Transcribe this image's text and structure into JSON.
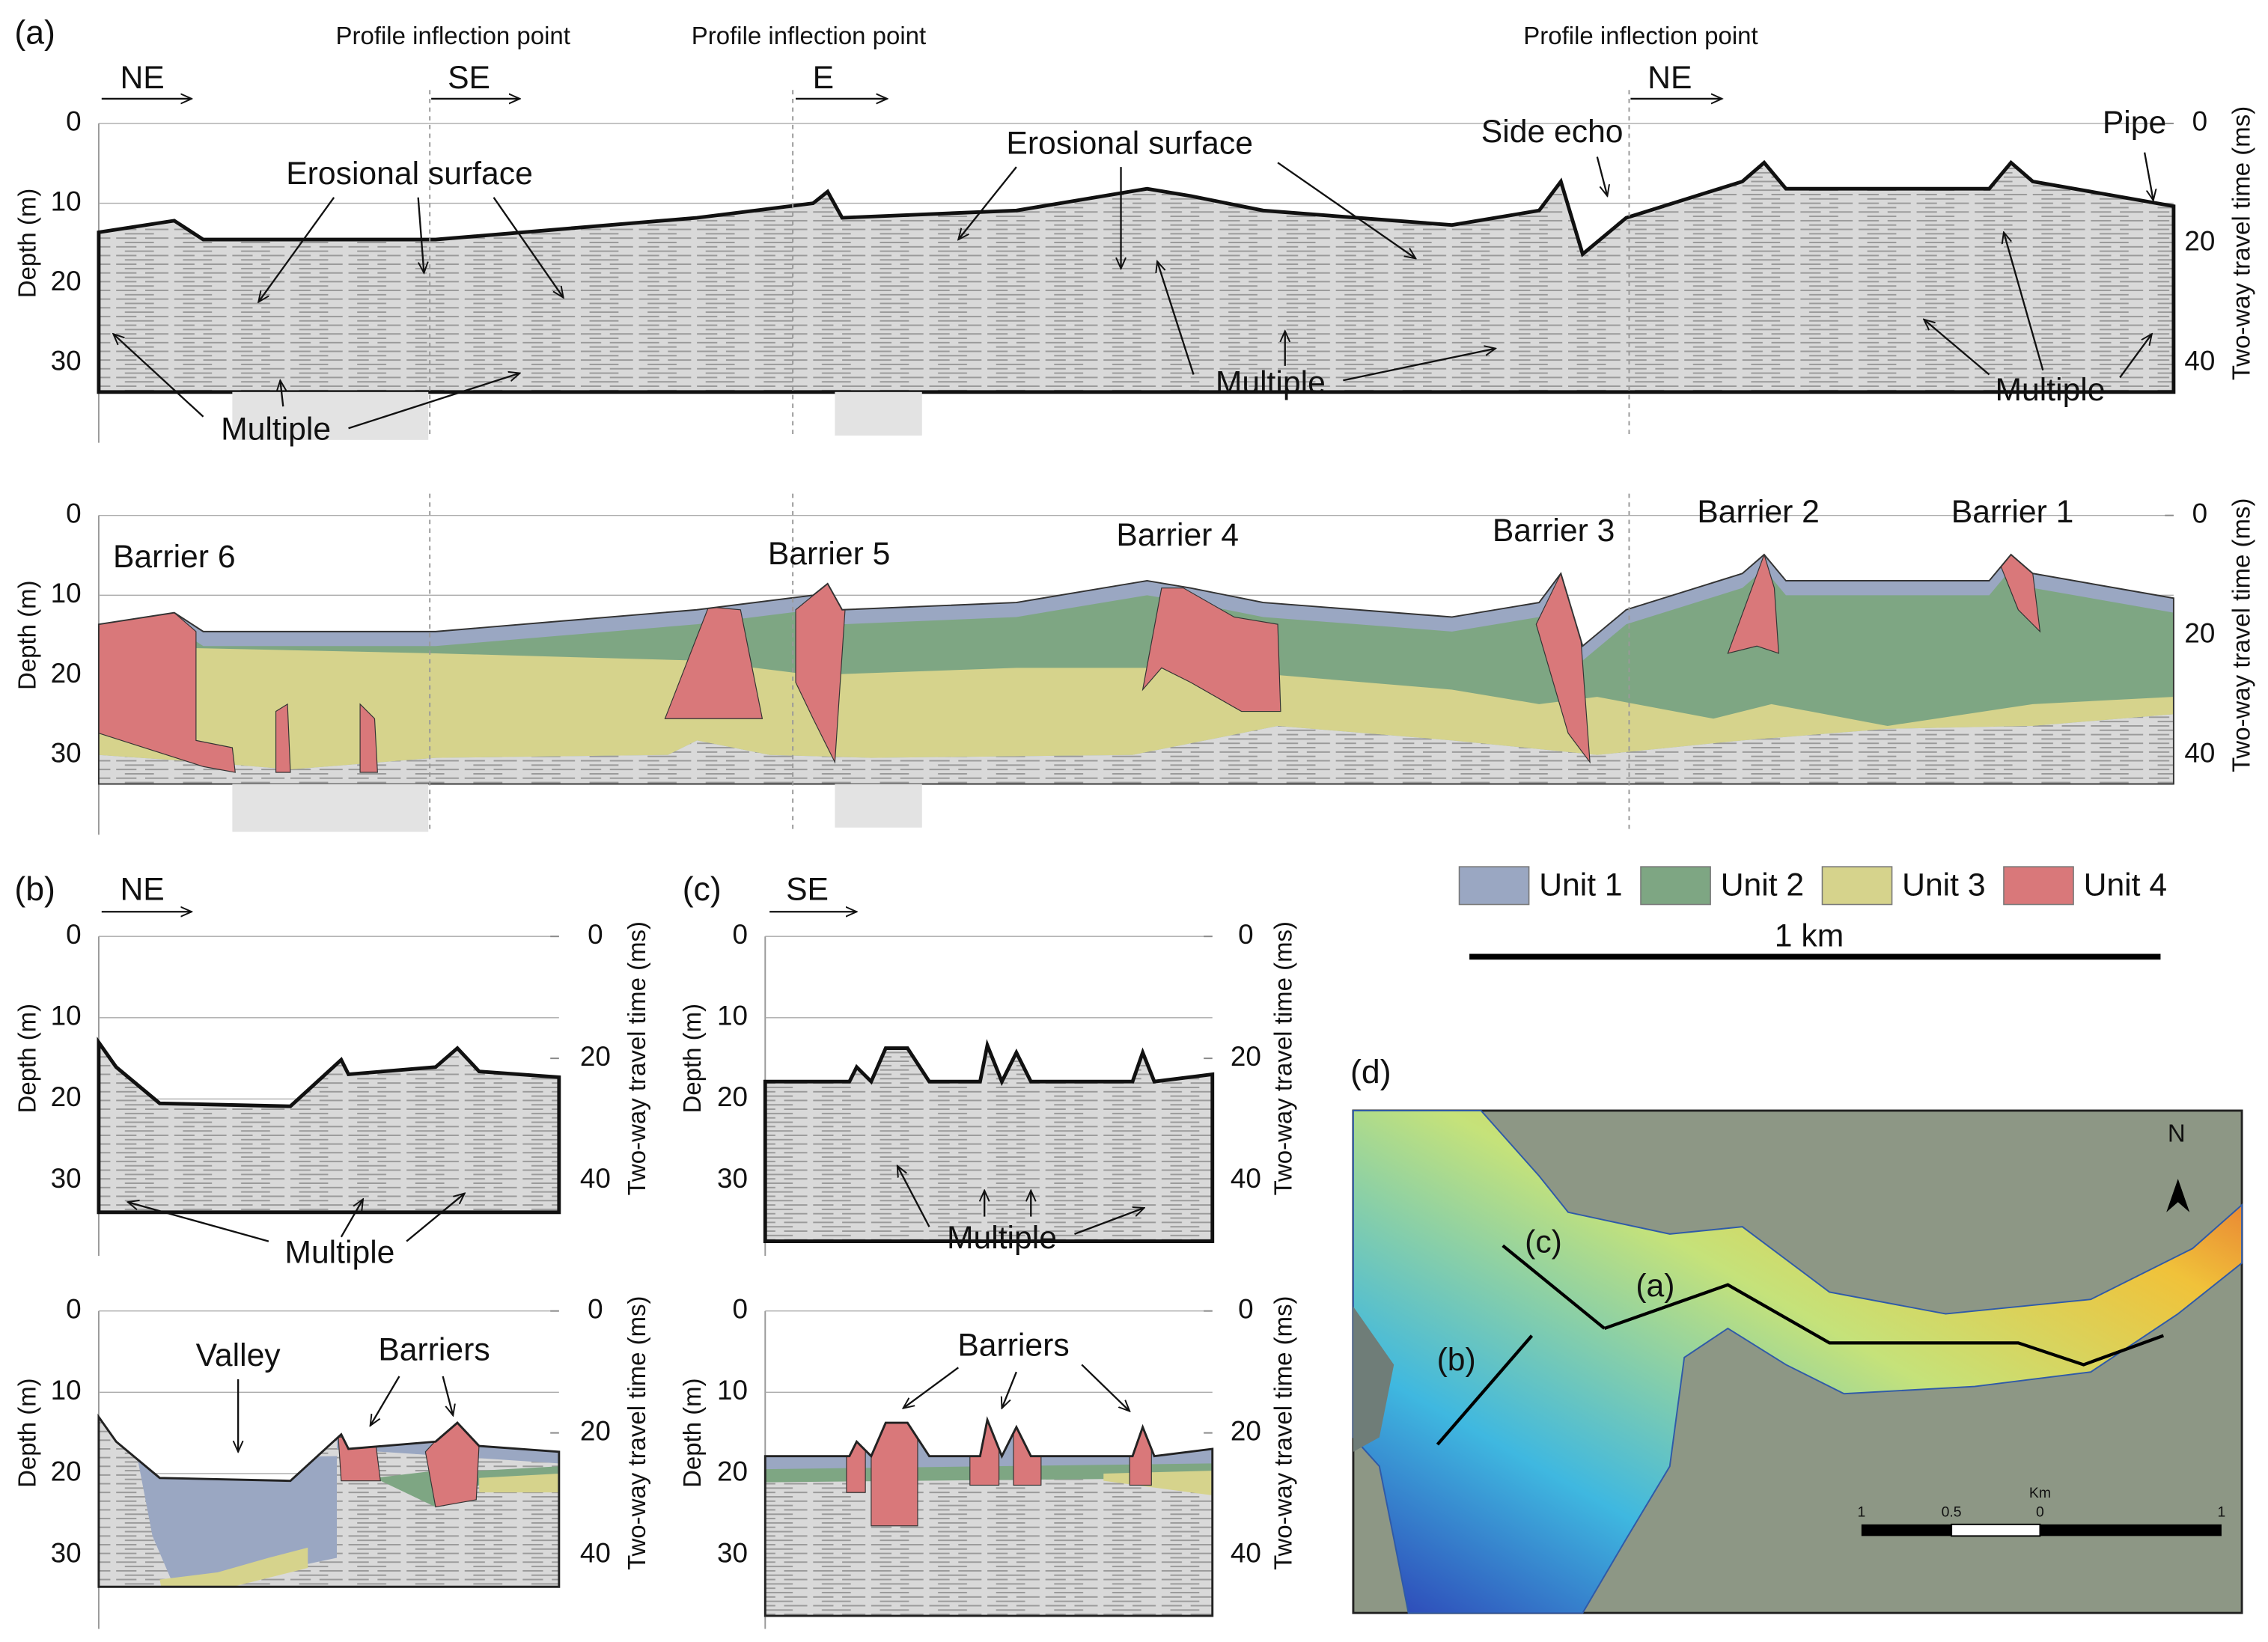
{
  "axes": {
    "depth_title": "Depth (m)",
    "twt_title": "Two-way travel time (ms)",
    "depth_ticks": [
      0,
      10,
      20,
      30
    ],
    "twt_ticks": [
      0,
      20,
      40
    ]
  },
  "panel_a": {
    "label": "(a)",
    "inflection_labels": [
      "Profile inflection point",
      "Profile inflection point",
      "Profile inflection point"
    ],
    "directions": [
      "NE",
      "SE",
      "E",
      "NE"
    ],
    "annotations": [
      "Erosional surface",
      "Erosional surface",
      "Side echo",
      "Pipe",
      "Multiple",
      "Multiple",
      "Multiple"
    ],
    "barriers": [
      "Barrier 6",
      "Barrier 5",
      "Barrier 4",
      "Barrier 3",
      "Barrier 2",
      "Barrier 1"
    ]
  },
  "legend": {
    "units": [
      {
        "name": "Unit 1",
        "color": "#9aa7c2"
      },
      {
        "name": "Unit 2",
        "color": "#7ea683"
      },
      {
        "name": "Unit 3",
        "color": "#d6d38c"
      },
      {
        "name": "Unit 4",
        "color": "#d9787a"
      }
    ],
    "scale": "1 km"
  },
  "panel_b": {
    "label": "(b)",
    "direction": "NE",
    "annotations": [
      "Multiple",
      "Valley",
      "Barriers"
    ]
  },
  "panel_c": {
    "label": "(c)",
    "direction": "SE",
    "annotations": [
      "Multiple",
      "Barriers"
    ]
  },
  "panel_d": {
    "label": "(d)",
    "north": "N",
    "track_labels": [
      "(c)",
      "(a)",
      "(b)"
    ],
    "scale_labels": [
      "1",
      "0.5",
      "0",
      "1"
    ],
    "scale_unit": "Km"
  }
}
